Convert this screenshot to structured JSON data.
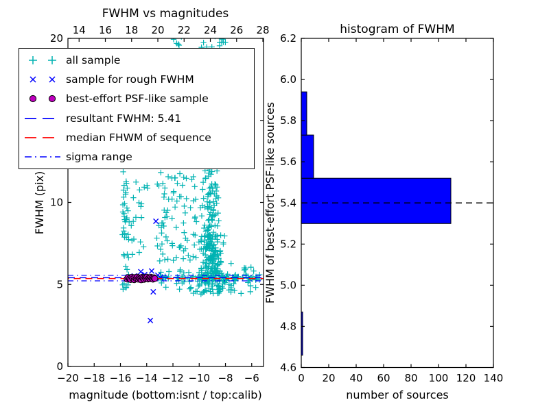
{
  "figure": {
    "background": "#ffffff"
  },
  "colors": {
    "all_sample": "#00b2b2",
    "rough_sample": "#0000ff",
    "psf_sample": "#bf00bf",
    "psf_sample_edge": "#000000",
    "resultant_line": "#0000ff",
    "median_line": "#ff0000",
    "sigma_line": "#0000ff",
    "hist_bar": "#0000ff",
    "hist_bar_edge": "#000000",
    "hist_dashed_line": "#000000",
    "axis": "#000000"
  },
  "legend": {
    "entries": [
      {
        "label": "all sample",
        "marker": "plus",
        "color": "#00b2b2"
      },
      {
        "label": "sample for rough FWHM",
        "marker": "x",
        "color": "#0000ff"
      },
      {
        "label": "best-effort PSF-like sample",
        "marker": "circle",
        "color": "#bf00bf"
      },
      {
        "label": "resultant FWHM: 5.41",
        "marker": "dashed-line",
        "color": "#0000ff"
      },
      {
        "label": "median FHWM of sequence",
        "marker": "dashed-line",
        "color": "#ff0000"
      },
      {
        "label": "sigma range",
        "marker": "dashdot-line",
        "color": "#0000ff"
      }
    ]
  },
  "left_plot": {
    "title": "FWHM vs magnitudes",
    "xlabel": "magnitude (bottom:isnt / top:calib)",
    "ylabel": "FWHM (pix)",
    "xticks_bottom": {
      "values": [
        -20,
        -18,
        -16,
        -14,
        -12,
        -10,
        -8,
        -6
      ],
      "labels": [
        "−20",
        "−18",
        "−16",
        "−14",
        "−12",
        "−10",
        "−8",
        "−6"
      ]
    },
    "xticks_top": {
      "values": [
        14,
        16,
        18,
        20,
        22,
        24,
        26,
        28
      ],
      "labels": [
        "14",
        "16",
        "18",
        "20",
        "22",
        "24",
        "26",
        "28"
      ]
    },
    "yticks": {
      "values": [
        0,
        5,
        10,
        15,
        20
      ],
      "labels": [
        "0",
        "5",
        "10",
        "15",
        "20"
      ]
    }
  },
  "right_plot": {
    "title": "histogram of FWHM",
    "xlabel": "number of sources",
    "ylabel": "FWHM of best-effort PSF-like sources",
    "xticks": {
      "values": [
        0,
        20,
        40,
        60,
        80,
        100,
        120,
        140
      ],
      "labels": [
        "0",
        "20",
        "40",
        "60",
        "80",
        "100",
        "120",
        "140"
      ]
    },
    "yticks": {
      "values": [
        4.6,
        4.8,
        5.0,
        5.2,
        5.4,
        5.6,
        5.8,
        6.0,
        6.2
      ],
      "labels": [
        "4.6",
        "4.8",
        "5.0",
        "5.2",
        "5.4",
        "5.6",
        "5.8",
        "6.0",
        "6.2"
      ]
    }
  },
  "chart_data": [
    {
      "type": "scatter",
      "title": "FWHM vs magnitudes",
      "xlabel": "magnitude (bottom:isnt / top:calib)",
      "ylabel": "FWHM (pix)",
      "xlim_bottom": [
        -20,
        -5.1
      ],
      "xlim_top": [
        13.15,
        28.05
      ],
      "ylim": [
        0,
        20
      ],
      "grid": false,
      "legend_position": "upper left",
      "series": [
        {
          "name": "all sample",
          "marker": "plus",
          "color": "#00b2b2",
          "clusters": [
            {
              "shape": "uniform",
              "x": [
                -15.85,
                -15.35
              ],
              "y": [
                4.6,
                11.9
              ],
              "n": 42
            },
            {
              "shape": "uniform",
              "x": [
                -15.35,
                -13.9
              ],
              "y": [
                6.8,
                11.6
              ],
              "n": 20
            },
            {
              "shape": "uniform",
              "x": [
                -13.25,
                -10.2
              ],
              "y": [
                5.7,
                11.9
              ],
              "n": 85
            },
            {
              "shape": "gauss_x",
              "cx": -9.2,
              "sx": 0.3,
              "y": [
                8.0,
                12.0
              ],
              "n": 75
            },
            {
              "shape": "gauss_x",
              "cx": -9.1,
              "sx": 0.45,
              "y": [
                5.5,
                8.0
              ],
              "n": 150
            },
            {
              "shape": "gauss_x",
              "cx": -8.9,
              "sx": 0.85,
              "y": [
                4.4,
                5.7
              ],
              "n": 90
            },
            {
              "shape": "band",
              "x": [
                -13.2,
                -5.4
              ],
              "cy": 5.4,
              "sy": 0.07,
              "n": 65
            },
            {
              "shape": "uniform",
              "x": [
                -13.1,
                -10.6
              ],
              "y": [
                4.6,
                5.2
              ],
              "n": 10
            },
            {
              "shape": "uniform",
              "x": [
                -7.6,
                -5.35
              ],
              "y": [
                4.5,
                6.3
              ],
              "n": 25
            },
            {
              "shape": "uniform",
              "x": [
                -11.95,
                -11.3
              ],
              "y": [
                19.5,
                20.2
              ],
              "n": 5
            },
            {
              "shape": "uniform",
              "x": [
                -9.9,
                -7.9
              ],
              "y": [
                19.4,
                20.25
              ],
              "n": 13
            }
          ]
        },
        {
          "name": "sample for rough FWHM",
          "marker": "x",
          "color": "#0000ff",
          "points": [
            [
              -13.3,
              8.85
            ],
            [
              -14.45,
              5.78
            ],
            [
              -13.62,
              5.82
            ],
            [
              -13.15,
              5.56
            ],
            [
              -14.95,
              5.52
            ],
            [
              -15.35,
              5.45
            ],
            [
              -14.15,
              5.6
            ],
            [
              -12.95,
              5.42
            ],
            [
              -14.7,
              5.35
            ],
            [
              -15.1,
              5.38
            ],
            [
              -13.5,
              4.55
            ],
            [
              -13.72,
              2.8
            ]
          ]
        },
        {
          "name": "best-effort PSF-like sample",
          "marker": "circle",
          "color": "#bf00bf",
          "points": [
            [
              -15.5,
              5.33
            ],
            [
              -15.42,
              5.42
            ],
            [
              -15.3,
              5.36
            ],
            [
              -15.22,
              5.3
            ],
            [
              -15.12,
              5.44
            ],
            [
              -15.05,
              5.35
            ],
            [
              -14.95,
              5.29
            ],
            [
              -14.9,
              5.42
            ],
            [
              -14.8,
              5.36
            ],
            [
              -14.72,
              5.45
            ],
            [
              -14.65,
              5.32
            ],
            [
              -14.58,
              5.4
            ],
            [
              -14.5,
              5.35
            ],
            [
              -14.42,
              5.28
            ],
            [
              -14.35,
              5.44
            ],
            [
              -14.28,
              5.38
            ],
            [
              -14.2,
              5.31
            ],
            [
              -14.12,
              5.42
            ],
            [
              -14.05,
              5.36
            ],
            [
              -13.98,
              5.45
            ],
            [
              -13.9,
              5.33
            ],
            [
              -13.82,
              5.4
            ],
            [
              -13.75,
              5.35
            ],
            [
              -13.68,
              5.44
            ],
            [
              -13.6,
              5.38
            ],
            [
              -13.52,
              5.32
            ],
            [
              -13.45,
              5.41
            ],
            [
              -13.38,
              5.36
            ]
          ]
        }
      ],
      "hlines": [
        {
          "name": "resultant FWHM",
          "y": 5.41,
          "style": "dashed",
          "color": "#0000ff"
        },
        {
          "name": "median FHWM of sequence",
          "y": 5.36,
          "style": "dashed",
          "color": "#ff0000"
        },
        {
          "name": "sigma range upper",
          "y": 5.55,
          "style": "dashdot",
          "color": "#0000ff"
        },
        {
          "name": "sigma range lower",
          "y": 5.22,
          "style": "dashdot",
          "color": "#0000ff"
        }
      ]
    },
    {
      "type": "bar",
      "orientation": "horizontal",
      "title": "histogram of FWHM",
      "xlabel": "number of sources",
      "ylabel": "FWHM of best-effort PSF-like sources",
      "xlim": [
        0,
        140
      ],
      "ylim": [
        4.6,
        6.2
      ],
      "grid": false,
      "bin_edges": [
        4.66,
        4.87,
        5.09,
        5.3,
        5.52,
        5.73,
        5.94
      ],
      "values": [
        1,
        0,
        0,
        109,
        9,
        4
      ],
      "bar_color": "#0000ff",
      "dashed_line_y": 5.4
    }
  ]
}
